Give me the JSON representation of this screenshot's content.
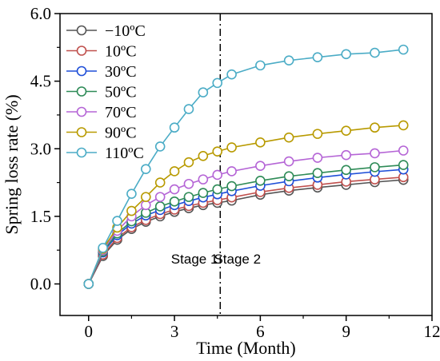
{
  "chart_data": {
    "type": "line",
    "xlabel": "Time (Month)",
    "ylabel": "Spring loss rate (%)",
    "xlim": [
      -1,
      12
    ],
    "ylim": [
      -0.7,
      6.0
    ],
    "xticks": [
      0,
      3,
      6,
      9,
      12
    ],
    "yticks": [
      0.0,
      1.5,
      3.0,
      4.5,
      6.0
    ],
    "xtick_labels": [
      "0",
      "3",
      "6",
      "9",
      "12"
    ],
    "ytick_labels": [
      "0.0",
      "1.5",
      "3.0",
      "4.5",
      "6.0"
    ],
    "grid": false,
    "legend_position": "top-left",
    "x": [
      0,
      0.5,
      1,
      1.5,
      2,
      2.5,
      3,
      3.5,
      4,
      4.5,
      5,
      6,
      7,
      8,
      9,
      10,
      11
    ],
    "series": [
      {
        "name": "−10ºC",
        "color": "#555555",
        "values": [
          0.0,
          0.62,
          0.98,
          1.22,
          1.38,
          1.5,
          1.6,
          1.68,
          1.75,
          1.8,
          1.85,
          1.98,
          2.07,
          2.14,
          2.2,
          2.26,
          2.31
        ]
      },
      {
        "name": "10ºC",
        "color": "#c0504d",
        "values": [
          0.0,
          0.65,
          1.02,
          1.26,
          1.42,
          1.55,
          1.65,
          1.73,
          1.8,
          1.86,
          1.92,
          2.04,
          2.13,
          2.2,
          2.27,
          2.32,
          2.37
        ]
      },
      {
        "name": "30ºC",
        "color": "#1f4fd8",
        "values": [
          0.0,
          0.7,
          1.08,
          1.34,
          1.52,
          1.64,
          1.75,
          1.84,
          1.92,
          1.99,
          2.06,
          2.18,
          2.28,
          2.36,
          2.43,
          2.49,
          2.54
        ]
      },
      {
        "name": "50ºC",
        "color": "#2e8b57",
        "values": [
          0.0,
          0.72,
          1.12,
          1.39,
          1.58,
          1.72,
          1.83,
          1.93,
          2.02,
          2.1,
          2.17,
          2.29,
          2.39,
          2.46,
          2.53,
          2.59,
          2.64
        ]
      },
      {
        "name": "70ºC",
        "color": "#b565d6",
        "values": [
          0.0,
          0.75,
          1.18,
          1.5,
          1.75,
          1.93,
          2.1,
          2.22,
          2.32,
          2.42,
          2.5,
          2.62,
          2.72,
          2.8,
          2.86,
          2.9,
          2.96
        ]
      },
      {
        "name": "90ºC",
        "color": "#b89a00",
        "values": [
          0.0,
          0.78,
          1.25,
          1.62,
          1.93,
          2.25,
          2.5,
          2.7,
          2.84,
          2.94,
          3.03,
          3.14,
          3.25,
          3.33,
          3.4,
          3.47,
          3.52
        ]
      },
      {
        "name": "110ºC",
        "color": "#4bacc6",
        "values": [
          0.0,
          0.8,
          1.4,
          2.0,
          2.55,
          3.05,
          3.47,
          3.88,
          4.25,
          4.46,
          4.65,
          4.85,
          4.96,
          5.03,
          5.1,
          5.13,
          5.2
        ]
      }
    ],
    "annotations": [
      {
        "text": "Stage 1",
        "x": 3.7,
        "y": 0.45
      },
      {
        "text": "Stage 2",
        "x": 5.2,
        "y": 0.45
      }
    ],
    "vline": {
      "x": 4.6,
      "style": "dash-dot"
    }
  }
}
